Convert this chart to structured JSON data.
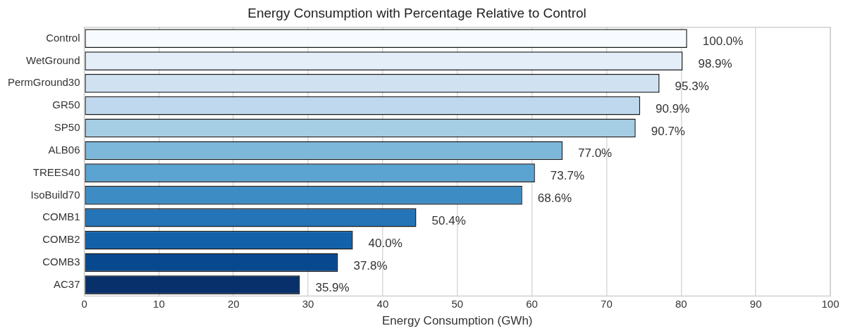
{
  "chart_data": {
    "type": "bar",
    "orientation": "horizontal",
    "title": "Energy Consumption with Percentage Relative to Control",
    "xlabel": "Energy Consumption (GWh)",
    "categories": [
      "Control",
      "WetGround",
      "PermGround30",
      "GR50",
      "SP50",
      "ALB06",
      "TREES40",
      "IsoBuild70",
      "COMB1",
      "COMB2",
      "COMB3",
      "AC37"
    ],
    "values": [
      80.8,
      80.2,
      77.1,
      74.5,
      73.9,
      64.1,
      60.4,
      58.7,
      44.5,
      36.0,
      34.0,
      28.9
    ],
    "colors": [
      "#f7fbff",
      "#e3eef9",
      "#d0e2f2",
      "#bfd8ed",
      "#a5cde3",
      "#7db8da",
      "#5ba3d0",
      "#3d8dc4",
      "#2474b7",
      "#1361a9",
      "#08488e",
      "#08306b"
    ],
    "annotations": [
      {
        "text": "100.0%",
        "x": 80.8,
        "y": "Control"
      },
      {
        "text": "98.9%",
        "x": 80.2,
        "y": "WetGround"
      },
      {
        "text": "95.3%",
        "x": 77.1,
        "y": "PermGround30"
      },
      {
        "text": "90.9%",
        "x": 74.5,
        "y": "GR50"
      },
      {
        "text": "90.7%",
        "x": 73.9,
        "y": "SP50"
      },
      {
        "text": "77.0%",
        "x": 64.1,
        "y": "ALB06"
      },
      {
        "text": "73.7%",
        "x": 60.4,
        "y": "TREES40"
      },
      {
        "text": "68.6%",
        "x": 58.7,
        "y": "IsoBuild70"
      },
      {
        "text": "50.4%",
        "x": 44.5,
        "y": "COMB1"
      },
      {
        "text": "40.0%",
        "x": 36.0,
        "y": "COMB2"
      },
      {
        "text": "37.8%",
        "x": 34.0,
        "y": "COMB3"
      },
      {
        "text": "35.9%",
        "x": 28.9,
        "y": "AC37"
      }
    ],
    "xlim": [
      0,
      100
    ],
    "xticks": [
      0,
      10,
      20,
      30,
      40,
      50,
      60,
      70,
      80,
      90,
      100
    ],
    "grid": "x",
    "legend": false
  }
}
